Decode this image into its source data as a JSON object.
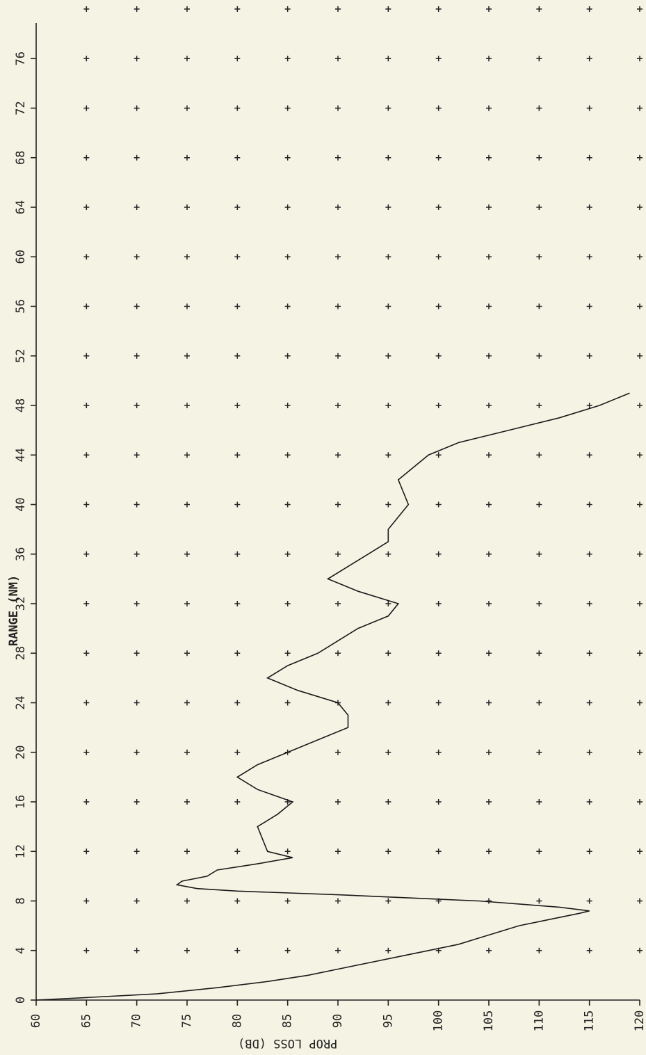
{
  "chart_data": {
    "type": "line",
    "xlabel": "RANGE (NM)",
    "ylabel": "PROP LOSS (DB)",
    "x": [
      0,
      0.2,
      0.5,
      1,
      1.5,
      2,
      2.5,
      3,
      3.5,
      4,
      4.5,
      5,
      5.5,
      6,
      6.5,
      7,
      7.2,
      7.5,
      8,
      8.5,
      8.8,
      9,
      9.3,
      9.6,
      10,
      10.5,
      11,
      11.5,
      12,
      13,
      14,
      15,
      16,
      17,
      18,
      19,
      20,
      21,
      22,
      23,
      24,
      25,
      26,
      27,
      28,
      29,
      30,
      31,
      32,
      33,
      34,
      35,
      36,
      37,
      38,
      40,
      42,
      44,
      45,
      46,
      47,
      48,
      49
    ],
    "series": [
      {
        "name": "PROP LOSS",
        "color": "#1a1a1a",
        "values": [
          60,
          65,
          72,
          78,
          83,
          87,
          90,
          93,
          96,
          99,
          102,
          104,
          106,
          108,
          111,
          114,
          115,
          112,
          104,
          90,
          80,
          76,
          74,
          74.5,
          77,
          78,
          82,
          85.5,
          83,
          82.5,
          82,
          84,
          85.5,
          82,
          80,
          82,
          85,
          88,
          91,
          91,
          90,
          86,
          83,
          85,
          88,
          90,
          92,
          95,
          96,
          92,
          89,
          91,
          93,
          95,
          95,
          97,
          96,
          99,
          102,
          107,
          112,
          116,
          119
        ]
      }
    ],
    "xlim": [
      0,
      80
    ],
    "xticks": [
      0,
      4,
      8,
      12,
      16,
      20,
      24,
      28,
      32,
      36,
      40,
      44,
      48,
      52,
      56,
      60,
      64,
      68,
      72,
      76
    ],
    "ylim": [
      60,
      120
    ],
    "yticks": [
      60,
      65,
      70,
      75,
      80,
      85,
      90,
      95,
      100,
      105,
      110,
      115,
      120
    ],
    "grid": "plus"
  }
}
